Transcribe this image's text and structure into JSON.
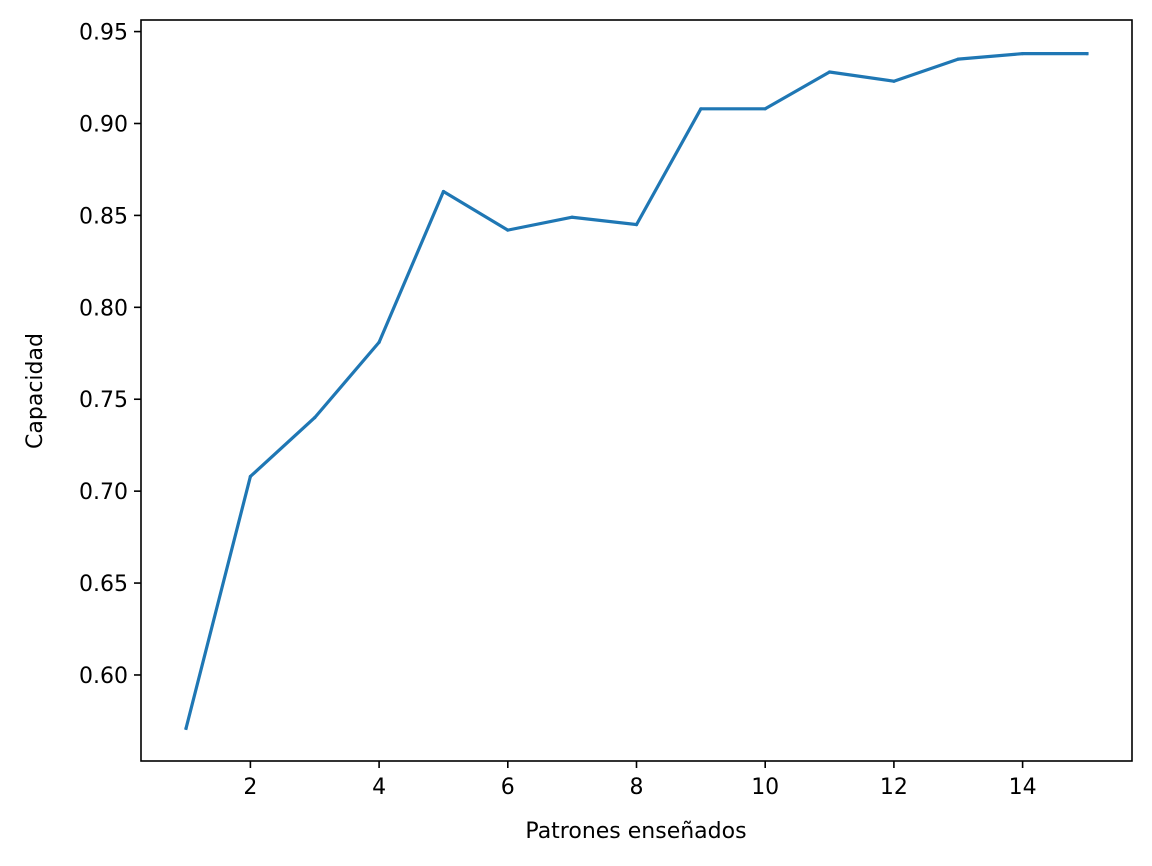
{
  "chart_data": {
    "type": "line",
    "title": "",
    "xlabel": "Patrones enseñados",
    "ylabel": "Capacidad",
    "x": [
      1,
      2,
      3,
      4,
      5,
      6,
      7,
      8,
      9,
      10,
      11,
      12,
      13,
      14,
      15
    ],
    "series": [
      {
        "values": [
          0.571,
          0.708,
          0.74,
          0.781,
          0.863,
          0.842,
          0.849,
          0.845,
          0.908,
          0.908,
          0.928,
          0.923,
          0.935,
          0.938,
          0.938
        ],
        "color": "#1f77b4"
      }
    ],
    "xlim": [
      0.3,
      15.7
    ],
    "ylim": [
      0.5532,
      0.9563
    ],
    "xticks": [
      2,
      4,
      6,
      8,
      10,
      12,
      14
    ],
    "xtick_labels": [
      "2",
      "4",
      "6",
      "8",
      "10",
      "12",
      "14"
    ],
    "yticks": [
      0.6,
      0.65,
      0.7,
      0.75,
      0.8,
      0.85,
      0.9,
      0.95
    ],
    "ytick_labels": [
      "0.60",
      "0.65",
      "0.70",
      "0.75",
      "0.80",
      "0.85",
      "0.90",
      "0.95"
    ],
    "grid": false,
    "legend": false
  }
}
